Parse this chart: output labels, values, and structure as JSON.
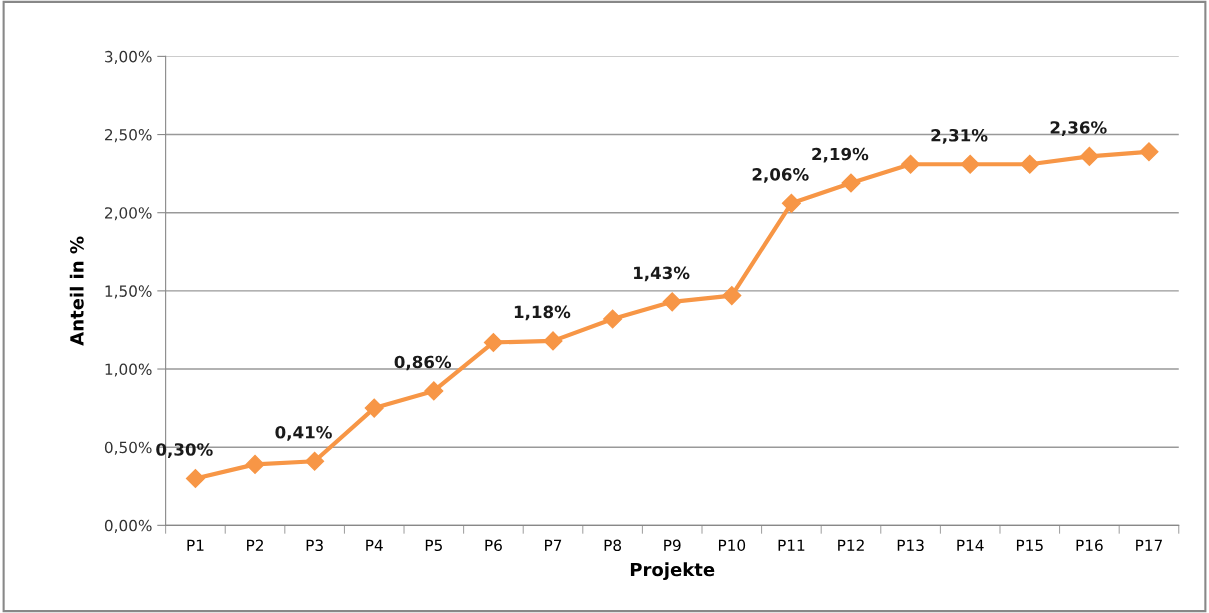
{
  "chart_data": {
    "type": "line",
    "xlabel": "Projekte",
    "ylabel": "Anteil in %",
    "categories": [
      "P1",
      "P2",
      "P3",
      "P4",
      "P5",
      "P6",
      "P7",
      "P8",
      "P9",
      "P10",
      "P11",
      "P12",
      "P13",
      "P14",
      "P15",
      "P16",
      "P17"
    ],
    "series": [
      {
        "color": "#f79646",
        "values": [
          0.3,
          0.39,
          0.41,
          0.75,
          0.86,
          1.17,
          1.18,
          1.32,
          1.43,
          1.47,
          2.06,
          2.19,
          2.31,
          2.31,
          2.31,
          2.36,
          2.39
        ],
        "value_labels": [
          "0,30%",
          null,
          "0,41%",
          null,
          "0,86%",
          null,
          "1,18%",
          null,
          "1,43%",
          null,
          "2,06%",
          "2,19%",
          null,
          "2,31%",
          null,
          "2,36%",
          null
        ]
      }
    ],
    "ylim": [
      0,
      3
    ],
    "yticks": [
      {
        "value": 0,
        "label": "0,00%"
      },
      {
        "value": 0.5,
        "label": "0,50%"
      },
      {
        "value": 1,
        "label": "1,00%"
      },
      {
        "value": 1.5,
        "label": "1,50%"
      },
      {
        "value": 2,
        "label": "2,00%"
      },
      {
        "value": 2.5,
        "label": "2,50%"
      },
      {
        "value": 3,
        "label": "3,00%"
      }
    ],
    "grid": "y",
    "marker": "diamond",
    "line_style": "solid",
    "legend": false
  }
}
